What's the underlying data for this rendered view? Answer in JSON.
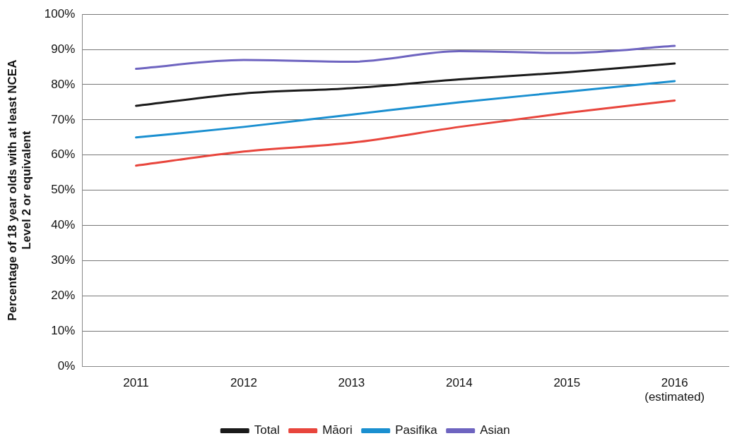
{
  "chart_data": {
    "type": "line",
    "ylabel": "Percentage of 18 year olds with at least NCEA\nLevel 2 or equivalent",
    "categories": [
      "2011",
      "2012",
      "2013",
      "2014",
      "2015",
      "2016\n(estimated)"
    ],
    "series": [
      {
        "name": "Total",
        "color": "#1a1a1a",
        "values": [
          74,
          77.5,
          79,
          81.5,
          83.5,
          86
        ]
      },
      {
        "name": "Māori",
        "color": "#e8453c",
        "values": [
          57,
          61,
          63.5,
          68,
          72,
          75.5
        ]
      },
      {
        "name": "Pasifika",
        "color": "#1a8fd0",
        "values": [
          65,
          68,
          71.5,
          75,
          78,
          81
        ]
      },
      {
        "name": "Asian",
        "color": "#6e64c0",
        "values": [
          84.5,
          87,
          86.5,
          89.5,
          89,
          91
        ]
      }
    ],
    "ylim": [
      0,
      100
    ],
    "yticks": [
      {
        "value": 0,
        "label": "0%"
      },
      {
        "value": 10,
        "label": "10%"
      },
      {
        "value": 20,
        "label": "20%"
      },
      {
        "value": 30,
        "label": "30%"
      },
      {
        "value": 40,
        "label": "40%"
      },
      {
        "value": 50,
        "label": "50%"
      },
      {
        "value": 60,
        "label": "60%"
      },
      {
        "value": 70,
        "label": "70%"
      },
      {
        "value": 80,
        "label": "80%"
      },
      {
        "value": 90,
        "label": "90%"
      },
      {
        "value": 100,
        "label": "100%"
      }
    ],
    "grid": "y",
    "legend": "bottom",
    "marker": "none",
    "line_style": "solid"
  }
}
